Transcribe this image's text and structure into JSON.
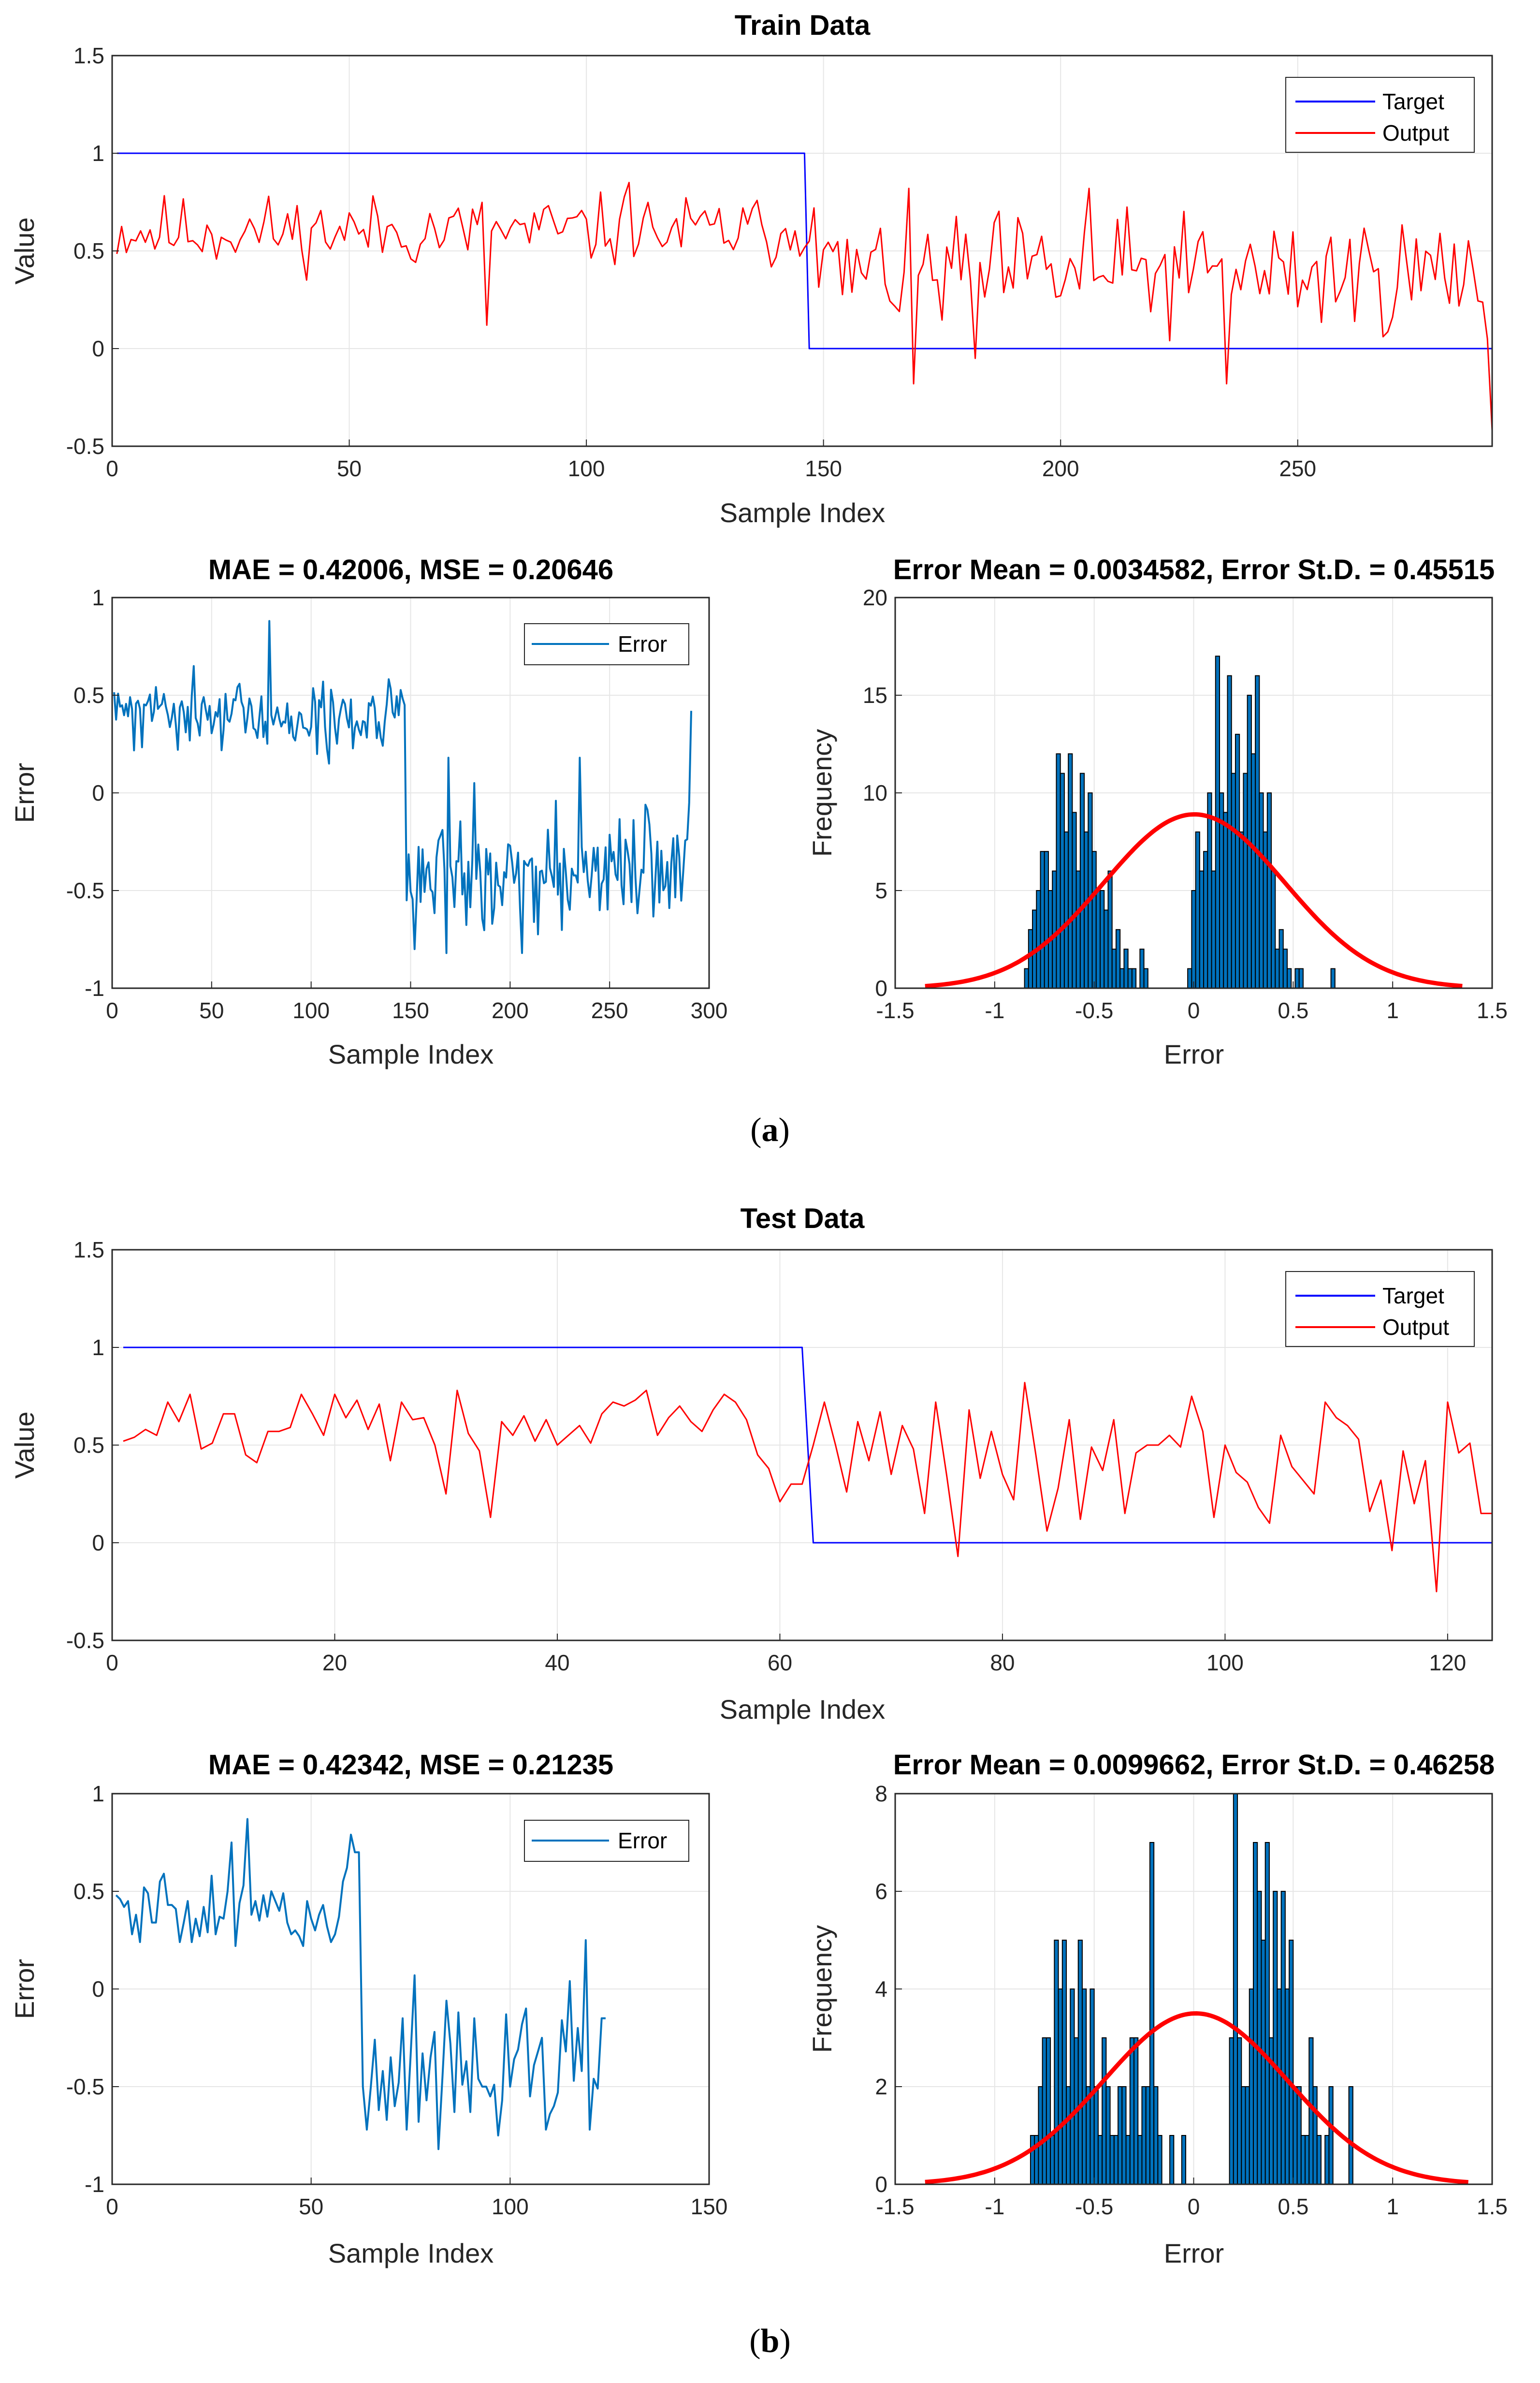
{
  "colors": {
    "target": "#0000ff",
    "output": "#ff0000",
    "error": "#0072bd",
    "hist_bar": "#0072bd",
    "hist_edge": "#000000",
    "normal_curve": "#ff0000",
    "grid": "#e6e6e6",
    "axis": "#262626"
  },
  "panels": [
    {
      "label_open": "(",
      "label_letter": "a",
      "label_close": ")"
    },
    {
      "label_open": "(",
      "label_letter": "b",
      "label_close": ")"
    }
  ],
  "chart_data": [
    {
      "id": "train-main",
      "type": "line",
      "title": "Train Data",
      "xlabel": "Sample Index",
      "ylabel": "Value",
      "xlim": [
        0,
        291
      ],
      "ylim": [
        -0.5,
        1.5
      ],
      "xticks": [
        0,
        50,
        100,
        150,
        200,
        250
      ],
      "yticks": [
        -0.5,
        0,
        0.5,
        1,
        1.5
      ],
      "legend": {
        "position": "top-right",
        "entries": [
          "Target",
          "Output"
        ]
      },
      "target": {
        "name": "Target",
        "step_at": 146,
        "before": 1,
        "after": 0,
        "n": 291
      },
      "output": {
        "name": "Output",
        "n": 291,
        "seed": 11,
        "level_before": 0.6,
        "level_after": 0.38,
        "noise_before": 0.13,
        "noise_after": 0.22,
        "spikes": [
          [
            78,
            0.12
          ],
          [
            146,
            0.55
          ],
          [
            147,
            0.72
          ],
          [
            168,
            -0.18
          ],
          [
            181,
            -0.05
          ],
          [
            234,
            -0.18
          ],
          [
            290,
            -0.42
          ],
          [
            289,
            0.05
          ],
          [
            108,
            0.85
          ],
          [
            205,
            0.82
          ]
        ]
      }
    },
    {
      "id": "train-error",
      "type": "line",
      "title": "MAE = 0.42006, MSE = 0.20646",
      "xlabel": "Sample Index",
      "ylabel": "Error",
      "xlim": [
        0,
        300
      ],
      "ylim": [
        -1,
        1
      ],
      "xticks": [
        0,
        50,
        100,
        150,
        200,
        250,
        300
      ],
      "yticks": [
        -1,
        -0.5,
        0,
        0.5,
        1
      ],
      "legend": {
        "position": "top-right",
        "entries": [
          "Error"
        ]
      },
      "error": {
        "name": "Error",
        "n": 291,
        "seed": 11,
        "derived_from": "train-main",
        "spikes": [
          [
            78,
            0.88
          ],
          [
            146,
            0.45
          ],
          [
            147,
            -0.55
          ],
          [
            151,
            -0.8
          ],
          [
            290,
            0.42
          ]
        ]
      }
    },
    {
      "id": "train-hist",
      "type": "bar",
      "title": "Error Mean = 0.0034582, Error St.D. = 0.45515",
      "xlabel": "Error",
      "ylabel": "Frequency",
      "xlim": [
        -1.5,
        1.5
      ],
      "ylim": [
        0,
        20
      ],
      "xticks": [
        -1.5,
        -1,
        -0.5,
        0,
        0.5,
        1,
        1.5
      ],
      "yticks": [
        0,
        5,
        10,
        15,
        20
      ],
      "bin_start": -0.85,
      "bin_width": 0.02,
      "values": [
        1,
        3,
        4,
        5,
        7,
        7,
        5,
        6,
        12,
        11,
        8,
        12,
        9,
        6,
        11,
        8,
        10,
        7,
        5,
        5,
        4,
        6,
        2,
        3,
        1,
        2,
        1,
        1,
        0,
        2,
        1,
        0,
        0,
        0,
        0,
        0,
        0,
        0,
        0,
        0,
        0,
        1,
        5,
        8,
        6,
        7,
        10,
        6,
        17,
        10,
        9,
        16,
        11,
        13,
        8,
        11,
        15,
        12,
        16,
        10,
        8,
        10,
        6,
        2,
        3,
        2,
        1,
        0,
        1,
        1,
        0,
        0,
        0,
        0,
        0,
        0,
        0,
        1
      ],
      "normal": {
        "mean": 0.0034582,
        "std": 0.45515,
        "peak": 8.9,
        "range": [
          -1.35,
          1.35
        ]
      }
    },
    {
      "id": "test-main",
      "type": "line",
      "title": "Test Data",
      "xlabel": "Sample Index",
      "ylabel": "Value",
      "xlim": [
        0,
        124
      ],
      "ylim": [
        -0.5,
        1.5
      ],
      "xticks": [
        0,
        20,
        40,
        60,
        80,
        100,
        120
      ],
      "yticks": [
        -0.5,
        0,
        0.5,
        1,
        1.5
      ],
      "legend": {
        "position": "top-right",
        "entries": [
          "Target",
          "Output"
        ]
      },
      "target": {
        "name": "Target",
        "step_at": 62,
        "before": 1,
        "after": 0,
        "n": 124
      },
      "output": {
        "name": "Output",
        "n": 124,
        "values": [
          0.52,
          0.54,
          0.58,
          0.55,
          0.72,
          0.62,
          0.76,
          0.48,
          0.51,
          0.66,
          0.66,
          0.45,
          0.41,
          0.57,
          0.57,
          0.59,
          0.76,
          0.66,
          0.55,
          0.76,
          0.64,
          0.73,
          0.58,
          0.71,
          0.42,
          0.72,
          0.63,
          0.64,
          0.5,
          0.25,
          0.78,
          0.56,
          0.47,
          0.13,
          0.62,
          0.55,
          0.65,
          0.52,
          0.63,
          0.5,
          0.55,
          0.6,
          0.51,
          0.66,
          0.72,
          0.7,
          0.73,
          0.78,
          0.55,
          0.64,
          0.7,
          0.62,
          0.57,
          0.68,
          0.76,
          0.72,
          0.63,
          0.45,
          0.38,
          0.21,
          0.3,
          0.3,
          0.5,
          0.72,
          0.5,
          0.26,
          0.62,
          0.42,
          0.67,
          0.35,
          0.6,
          0.48,
          0.15,
          0.72,
          0.34,
          -0.07,
          0.68,
          0.33,
          0.57,
          0.35,
          0.22,
          0.82,
          0.45,
          0.06,
          0.28,
          0.63,
          0.12,
          0.49,
          0.37,
          0.63,
          0.15,
          0.46,
          0.5,
          0.5,
          0.55,
          0.49,
          0.75,
          0.57,
          0.13,
          0.5,
          0.36,
          0.31,
          0.18,
          0.1,
          0.55,
          0.39,
          0.32,
          0.25,
          0.72,
          0.64,
          0.6,
          0.53,
          0.16,
          0.32,
          -0.04,
          0.47,
          0.2,
          0.42,
          -0.25,
          0.72,
          0.46,
          0.51,
          0.15,
          0.15
        ]
      }
    },
    {
      "id": "test-error",
      "type": "line",
      "title": "MAE = 0.42342, MSE = 0.21235",
      "xlabel": "Sample Index",
      "ylabel": "Error",
      "xlim": [
        0,
        150
      ],
      "ylim": [
        -1,
        1
      ],
      "xticks": [
        0,
        50,
        100,
        150
      ],
      "yticks": [
        -1,
        -0.5,
        0,
        0.5,
        1
      ],
      "legend": {
        "position": "top-right",
        "entries": [
          "Error"
        ]
      },
      "error": {
        "name": "Error",
        "n": 124,
        "derived_from": "test-main"
      }
    },
    {
      "id": "test-hist",
      "type": "bar",
      "title": "Error Mean = 0.0099662, Error St.D. = 0.46258",
      "xlabel": "Error",
      "ylabel": "Frequency",
      "xlim": [
        -1.5,
        1.5
      ],
      "ylim": [
        0,
        8
      ],
      "xticks": [
        -1.5,
        -1,
        -0.5,
        0,
        0.5,
        1,
        1.5
      ],
      "yticks": [
        0,
        2,
        4,
        6,
        8
      ],
      "bin_start": -0.82,
      "bin_width": 0.02,
      "values": [
        1,
        1,
        2,
        3,
        3,
        1,
        5,
        4,
        5,
        2,
        4,
        3,
        5,
        4,
        2,
        4,
        2,
        1,
        3,
        2,
        1,
        1,
        2,
        2,
        1,
        3,
        3,
        1,
        2,
        2,
        7,
        2,
        1,
        0,
        0,
        1,
        0,
        0,
        1,
        0,
        0,
        0,
        0,
        0,
        0,
        0,
        0,
        0,
        0,
        0,
        3,
        8,
        3,
        2,
        2,
        4,
        7,
        6,
        5,
        7,
        3,
        6,
        4,
        6,
        4,
        5,
        2,
        2,
        1,
        1,
        3,
        2,
        1,
        0,
        1,
        2,
        0,
        0,
        0,
        0,
        2
      ],
      "normal": {
        "mean": 0.0099662,
        "std": 0.46258,
        "peak": 3.5,
        "range": [
          -1.35,
          1.38
        ]
      }
    }
  ]
}
